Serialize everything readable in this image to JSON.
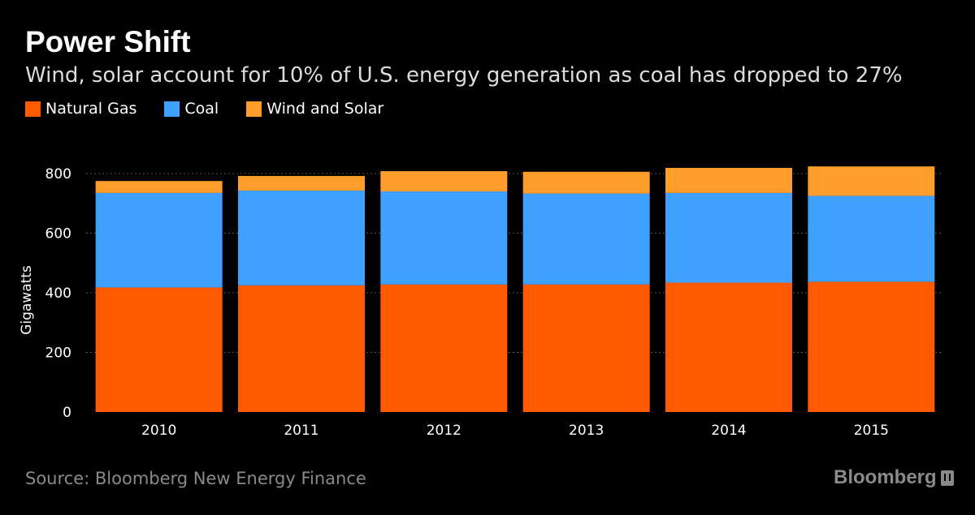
{
  "title": "Power Shift",
  "subtitle": "Wind, solar account for 10% of U.S. energy generation as coal has dropped to 27%",
  "legend": [
    {
      "label": "Natural Gas",
      "color": "#ff5a00"
    },
    {
      "label": "Coal",
      "color": "#3ea1ff"
    },
    {
      "label": "Wind and Solar",
      "color": "#ff9d2a"
    }
  ],
  "source": "Source: Bloomberg New Energy Finance",
  "brand": "Bloomberg",
  "chart_data": {
    "type": "bar",
    "stacked": true,
    "categories": [
      "2010",
      "2011",
      "2012",
      "2013",
      "2014",
      "2015"
    ],
    "series": [
      {
        "name": "Natural Gas",
        "color": "#ff5a00",
        "values": [
          418,
          425,
          428,
          428,
          434,
          437
        ]
      },
      {
        "name": "Coal",
        "color": "#3ea1ff",
        "values": [
          317,
          318,
          312,
          305,
          301,
          288
        ]
      },
      {
        "name": "Wind and Solar",
        "color": "#ff9d2a",
        "values": [
          40,
          49,
          68,
          73,
          84,
          99
        ]
      }
    ],
    "ylabel": "Gigawatts",
    "ylim": [
      0,
      800
    ],
    "yticks": [
      0,
      200,
      400,
      600,
      800
    ],
    "grid": true
  }
}
